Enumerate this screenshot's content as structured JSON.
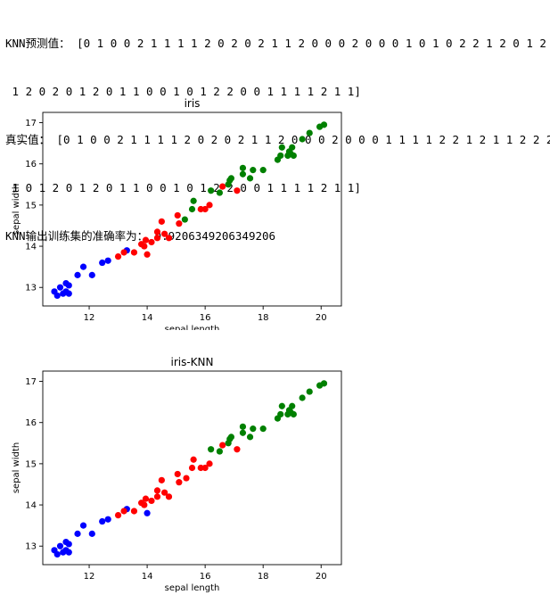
{
  "output": {
    "pred_line1": "KNN预测值： [0 1 0 0 2 1 1 1 1 2 0 2 0 2 1 1 2 0 0 0 2 0 0 0 1 0 1 0 2 2 1 2 0 1 2 2 2",
    "pred_line2": " 1 2 0 2 0 1 2 0 1 1 0 0 1 0 1 2 2 0 0 1 1 1 1 2 1 1]",
    "true_line1": "真实值： [0 1 0 0 2 1 1 1 1 2 0 2 0 2 1 1 2 0 0 0 2 0 0 0 1 1 1 1 2 2 1 2 1 1 2 2 2",
    "true_line2": " 1 0 1 2 0 1 2 0 1 1 0 0 1 0 1 2 2 0 0 1 1 1 1 2 1 1]",
    "accuracy_line": "KNN输出训练集的准确率为： 0.9206349206349206"
  },
  "chart_data": [
    {
      "type": "scatter",
      "title": "iris",
      "xlabel": "sepal length",
      "ylabel": "sepal width",
      "xlim": [
        10.4,
        20.7
      ],
      "ylim": [
        12.55,
        17.25
      ],
      "xticks": [
        12,
        14,
        16,
        18,
        20
      ],
      "yticks": [
        13,
        14,
        15,
        16,
        17
      ],
      "grid": false,
      "series": [
        {
          "color": "#0000ff",
          "points": [
            [
              10.8,
              12.9
            ],
            [
              10.9,
              12.8
            ],
            [
              11.0,
              13.0
            ],
            [
              11.1,
              12.85
            ],
            [
              11.2,
              13.1
            ],
            [
              11.2,
              12.9
            ],
            [
              11.3,
              13.05
            ],
            [
              11.3,
              12.85
            ],
            [
              11.6,
              13.3
            ],
            [
              11.8,
              13.5
            ],
            [
              12.1,
              13.3
            ],
            [
              12.45,
              13.6
            ],
            [
              12.65,
              13.65
            ],
            [
              13.3,
              13.9
            ]
          ]
        },
        {
          "color": "#ff0000",
          "points": [
            [
              13.0,
              13.75
            ],
            [
              13.2,
              13.85
            ],
            [
              13.55,
              13.85
            ],
            [
              13.8,
              14.05
            ],
            [
              13.9,
              14.0
            ],
            [
              13.95,
              14.15
            ],
            [
              14.0,
              13.8
            ],
            [
              14.15,
              14.1
            ],
            [
              14.35,
              14.2
            ],
            [
              14.35,
              14.35
            ],
            [
              14.5,
              14.6
            ],
            [
              14.6,
              14.3
            ],
            [
              14.75,
              14.2
            ],
            [
              15.05,
              14.75
            ],
            [
              15.1,
              14.55
            ],
            [
              15.85,
              14.9
            ],
            [
              16.0,
              14.9
            ],
            [
              16.15,
              15.0
            ],
            [
              16.6,
              15.45
            ],
            [
              17.1,
              15.35
            ]
          ]
        },
        {
          "color": "#008000",
          "points": [
            [
              15.3,
              14.65
            ],
            [
              15.55,
              14.9
            ],
            [
              15.6,
              15.1
            ],
            [
              16.2,
              15.35
            ],
            [
              16.5,
              15.3
            ],
            [
              16.8,
              15.5
            ],
            [
              16.85,
              15.6
            ],
            [
              16.9,
              15.65
            ],
            [
              17.3,
              15.9
            ],
            [
              17.3,
              15.75
            ],
            [
              17.55,
              15.65
            ],
            [
              17.65,
              15.85
            ],
            [
              18.0,
              15.85
            ],
            [
              18.5,
              16.1
            ],
            [
              18.6,
              16.2
            ],
            [
              18.65,
              16.4
            ],
            [
              18.85,
              16.2
            ],
            [
              18.9,
              16.3
            ],
            [
              18.95,
              16.25
            ],
            [
              19.0,
              16.4
            ],
            [
              19.05,
              16.2
            ],
            [
              19.35,
              16.6
            ],
            [
              19.6,
              16.75
            ],
            [
              19.95,
              16.9
            ],
            [
              20.1,
              16.95
            ]
          ]
        }
      ]
    },
    {
      "type": "scatter",
      "title": "iris-KNN",
      "xlabel": "sepal length",
      "ylabel": "sepal width",
      "xlim": [
        10.4,
        20.7
      ],
      "ylim": [
        12.55,
        17.25
      ],
      "xticks": [
        12,
        14,
        16,
        18,
        20
      ],
      "yticks": [
        13,
        14,
        15,
        16,
        17
      ],
      "grid": false,
      "series": [
        {
          "color": "#0000ff",
          "points": [
            [
              10.8,
              12.9
            ],
            [
              10.9,
              12.8
            ],
            [
              11.0,
              13.0
            ],
            [
              11.1,
              12.85
            ],
            [
              11.2,
              13.1
            ],
            [
              11.2,
              12.9
            ],
            [
              11.3,
              13.05
            ],
            [
              11.3,
              12.85
            ],
            [
              11.6,
              13.3
            ],
            [
              11.8,
              13.5
            ],
            [
              12.1,
              13.3
            ],
            [
              12.45,
              13.6
            ],
            [
              12.65,
              13.65
            ],
            [
              13.3,
              13.9
            ],
            [
              14.0,
              13.8
            ]
          ]
        },
        {
          "color": "#ff0000",
          "points": [
            [
              13.0,
              13.75
            ],
            [
              13.2,
              13.85
            ],
            [
              13.55,
              13.85
            ],
            [
              13.8,
              14.05
            ],
            [
              13.9,
              14.0
            ],
            [
              13.95,
              14.15
            ],
            [
              14.15,
              14.1
            ],
            [
              14.35,
              14.2
            ],
            [
              14.35,
              14.35
            ],
            [
              14.5,
              14.6
            ],
            [
              14.6,
              14.3
            ],
            [
              14.75,
              14.2
            ],
            [
              15.05,
              14.75
            ],
            [
              15.1,
              14.55
            ],
            [
              15.35,
              14.65
            ],
            [
              15.55,
              14.9
            ],
            [
              15.6,
              15.1
            ],
            [
              15.85,
              14.9
            ],
            [
              16.0,
              14.9
            ],
            [
              16.15,
              15.0
            ],
            [
              16.6,
              15.45
            ],
            [
              17.1,
              15.35
            ]
          ]
        },
        {
          "color": "#008000",
          "points": [
            [
              16.2,
              15.35
            ],
            [
              16.5,
              15.3
            ],
            [
              16.8,
              15.5
            ],
            [
              16.85,
              15.6
            ],
            [
              16.9,
              15.65
            ],
            [
              17.3,
              15.9
            ],
            [
              17.3,
              15.75
            ],
            [
              17.55,
              15.65
            ],
            [
              17.65,
              15.85
            ],
            [
              18.0,
              15.85
            ],
            [
              18.5,
              16.1
            ],
            [
              18.6,
              16.2
            ],
            [
              18.65,
              16.4
            ],
            [
              18.85,
              16.2
            ],
            [
              18.9,
              16.3
            ],
            [
              18.95,
              16.25
            ],
            [
              19.0,
              16.4
            ],
            [
              19.05,
              16.2
            ],
            [
              19.35,
              16.6
            ],
            [
              19.6,
              16.75
            ],
            [
              19.95,
              16.9
            ],
            [
              20.1,
              16.95
            ]
          ]
        }
      ]
    }
  ]
}
